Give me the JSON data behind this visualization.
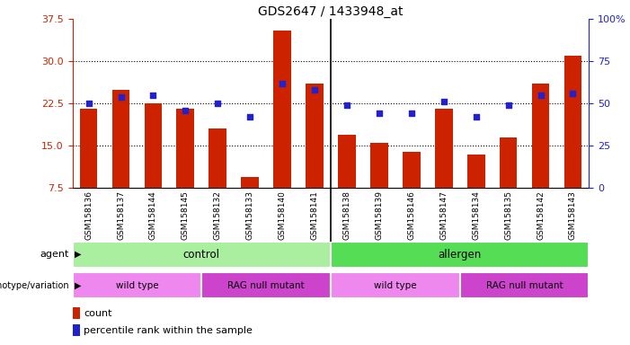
{
  "title": "GDS2647 / 1433948_at",
  "samples": [
    "GSM158136",
    "GSM158137",
    "GSM158144",
    "GSM158145",
    "GSM158132",
    "GSM158133",
    "GSM158140",
    "GSM158141",
    "GSM158138",
    "GSM158139",
    "GSM158146",
    "GSM158147",
    "GSM158134",
    "GSM158135",
    "GSM158142",
    "GSM158143"
  ],
  "counts": [
    21.5,
    25.0,
    22.5,
    21.5,
    18.0,
    9.5,
    35.5,
    26.0,
    17.0,
    15.5,
    14.0,
    21.5,
    13.5,
    16.5,
    26.0,
    31.0
  ],
  "percentiles": [
    50,
    54,
    55,
    46,
    50,
    42,
    62,
    58,
    49,
    44,
    44,
    51,
    42,
    49,
    55,
    56
  ],
  "ylim_left": [
    7.5,
    37.5
  ],
  "ylim_right": [
    0,
    100
  ],
  "yticks_left": [
    7.5,
    15.0,
    22.5,
    30.0,
    37.5
  ],
  "yticks_right": [
    0,
    25,
    50,
    75,
    100
  ],
  "grid_values": [
    15.0,
    22.5,
    30.0
  ],
  "bar_color": "#cc2200",
  "dot_color": "#2222cc",
  "background_color": "#ffffff",
  "xtick_bg_color": "#dddddd",
  "agent_control_color": "#aaeea0",
  "agent_allergen_color": "#55dd55",
  "genotype_wt_color": "#ee88ee",
  "genotype_rag_color": "#cc44cc",
  "agent_label": "agent",
  "genotype_label": "genotype/variation",
  "agent_groups": [
    {
      "label": "control",
      "start": 0,
      "end": 7
    },
    {
      "label": "allergen",
      "start": 8,
      "end": 15
    }
  ],
  "genotype_groups": [
    {
      "label": "wild type",
      "start": 0,
      "end": 3
    },
    {
      "label": "RAG null mutant",
      "start": 4,
      "end": 7
    },
    {
      "label": "wild type",
      "start": 8,
      "end": 11
    },
    {
      "label": "RAG null mutant",
      "start": 12,
      "end": 15
    }
  ],
  "legend_count_label": "count",
  "legend_percentile_label": "percentile rank within the sample",
  "separator_after": 7
}
